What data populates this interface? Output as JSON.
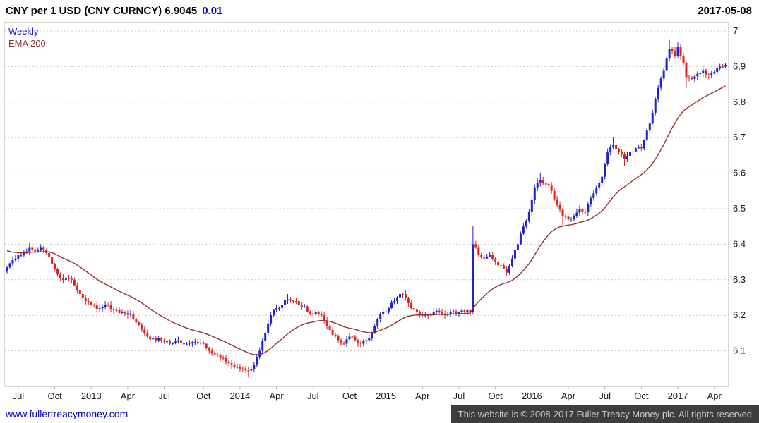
{
  "header": {
    "title": "CNY per 1 USD (CNY CURNCY) 6.9045",
    "change": "0.01",
    "date": "2017-05-08"
  },
  "legend": {
    "series": "Weekly",
    "ema": "EMA 200"
  },
  "footer": {
    "link": "www.fullertreacymoney.com",
    "copyright": "This website is © 2008-2017 Fuller Treacy Money plc. All rights reserved"
  },
  "chart_data": {
    "type": "candlestick",
    "title": "CNY per 1 USD (CNY CURNCY)",
    "frequency": "Weekly",
    "last_price": 6.9045,
    "change": 0.01,
    "date": "2017-05-08",
    "weeks_total": 257,
    "y_axis": {
      "side": "right",
      "min": 6.0,
      "max": 7.02,
      "ticks": [
        "7",
        "6.9",
        "6.8",
        "6.7",
        "6.6",
        "6.5",
        "6.4",
        "6.3",
        "6.2",
        "6.1"
      ]
    },
    "x_axis": {
      "labels": [
        {
          "label": "Jul",
          "week": 4
        },
        {
          "label": "Oct",
          "week": 17
        },
        {
          "label": "2013",
          "week": 30
        },
        {
          "label": "Apr",
          "week": 43
        },
        {
          "label": "Jul",
          "week": 56
        },
        {
          "label": "Oct",
          "week": 70
        },
        {
          "label": "2014",
          "week": 83
        },
        {
          "label": "Apr",
          "week": 96
        },
        {
          "label": "Jul",
          "week": 109
        },
        {
          "label": "Oct",
          "week": 122
        },
        {
          "label": "2015",
          "week": 135
        },
        {
          "label": "Apr",
          "week": 148
        },
        {
          "label": "Jul",
          "week": 161
        },
        {
          "label": "Oct",
          "week": 174
        },
        {
          "label": "2016",
          "week": 187
        },
        {
          "label": "Apr",
          "week": 200
        },
        {
          "label": "Jul",
          "week": 213
        },
        {
          "label": "Oct",
          "week": 226
        },
        {
          "label": "2017",
          "week": 239
        },
        {
          "label": "Apr",
          "week": 252
        }
      ]
    },
    "overlay": {
      "label": "EMA 200",
      "ema_period_weeks": 30,
      "ema_seed": 6.385,
      "color": "#8f3333"
    },
    "colors": {
      "up_candle": "#2222cc",
      "down_candle": "#dd2222",
      "ema_line": "#8f3333",
      "grid": "#c9c9c9",
      "border": "#b4b4b4",
      "axis_text": "#1a1a1a",
      "change_text": "#0000cc",
      "link": "#0000bb",
      "footer_bg": "#3d3d3d",
      "footer_text": "#cccccc"
    },
    "anchors_weekly_close": [
      [
        0,
        6.335
      ],
      [
        2,
        6.355
      ],
      [
        5,
        6.37
      ],
      [
        8,
        6.39,
        6.405,
        null
      ],
      [
        10,
        6.38
      ],
      [
        12,
        6.39,
        6.4,
        null
      ],
      [
        14,
        6.375
      ],
      [
        16,
        6.345
      ],
      [
        18,
        6.315
      ],
      [
        20,
        6.3
      ],
      [
        23,
        6.3
      ],
      [
        26,
        6.26
      ],
      [
        28,
        6.24
      ],
      [
        30,
        6.23
      ],
      [
        33,
        6.22
      ],
      [
        36,
        6.23
      ],
      [
        38,
        6.215
      ],
      [
        41,
        6.21
      ],
      [
        44,
        6.205
      ],
      [
        46,
        6.18
      ],
      [
        48,
        6.16
      ],
      [
        50,
        6.14
      ],
      [
        52,
        6.135
      ],
      [
        55,
        6.13
      ],
      [
        58,
        6.12
      ],
      [
        61,
        6.13
      ],
      [
        64,
        6.12
      ],
      [
        67,
        6.125
      ],
      [
        70,
        6.12
      ],
      [
        72,
        6.1
      ],
      [
        74,
        6.09
      ],
      [
        76,
        6.08
      ],
      [
        78,
        6.07
      ],
      [
        80,
        6.06
      ],
      [
        82,
        6.055
      ],
      [
        84,
        6.05
      ],
      [
        86,
        6.045,
        null,
        6.025
      ],
      [
        88,
        6.06
      ],
      [
        90,
        6.1
      ],
      [
        92,
        6.15
      ],
      [
        94,
        6.2
      ],
      [
        96,
        6.22
      ],
      [
        98,
        6.23
      ],
      [
        100,
        6.245,
        6.26,
        null
      ],
      [
        102,
        6.24
      ],
      [
        104,
        6.23
      ],
      [
        106,
        6.225
      ],
      [
        108,
        6.205
      ],
      [
        110,
        6.21
      ],
      [
        112,
        6.2
      ],
      [
        114,
        6.17
      ],
      [
        116,
        6.145
      ],
      [
        118,
        6.13
      ],
      [
        120,
        6.12
      ],
      [
        122,
        6.14
      ],
      [
        124,
        6.13
      ],
      [
        126,
        6.12,
        null,
        6.11
      ],
      [
        128,
        6.13
      ],
      [
        130,
        6.15
      ],
      [
        132,
        6.19
      ],
      [
        134,
        6.21
      ],
      [
        136,
        6.22
      ],
      [
        138,
        6.24
      ],
      [
        140,
        6.26
      ],
      [
        142,
        6.25,
        6.27,
        null
      ],
      [
        144,
        6.22
      ],
      [
        146,
        6.21
      ],
      [
        148,
        6.2
      ],
      [
        150,
        6.2
      ],
      [
        152,
        6.21
      ],
      [
        154,
        6.21
      ],
      [
        156,
        6.2
      ],
      [
        158,
        6.21
      ],
      [
        160,
        6.205
      ],
      [
        163,
        6.21
      ],
      [
        165,
        6.21
      ],
      [
        166,
        6.4,
        6.45,
        6.21
      ],
      [
        167,
        6.39
      ],
      [
        168,
        6.37
      ],
      [
        170,
        6.36
      ],
      [
        172,
        6.37
      ],
      [
        174,
        6.35
      ],
      [
        176,
        6.34
      ],
      [
        178,
        6.32,
        null,
        6.31
      ],
      [
        180,
        6.36
      ],
      [
        182,
        6.4
      ],
      [
        184,
        6.45
      ],
      [
        186,
        6.49
      ],
      [
        188,
        6.56
      ],
      [
        190,
        6.58,
        6.6,
        null
      ],
      [
        192,
        6.57
      ],
      [
        194,
        6.55
      ],
      [
        196,
        6.51
      ],
      [
        198,
        6.48,
        null,
        6.45
      ],
      [
        200,
        6.47
      ],
      [
        202,
        6.48
      ],
      [
        204,
        6.5
      ],
      [
        206,
        6.49
      ],
      [
        208,
        6.53
      ],
      [
        210,
        6.56
      ],
      [
        212,
        6.59
      ],
      [
        214,
        6.66
      ],
      [
        216,
        6.68,
        6.7,
        null
      ],
      [
        218,
        6.66
      ],
      [
        220,
        6.64,
        null,
        6.62
      ],
      [
        222,
        6.66
      ],
      [
        224,
        6.67
      ],
      [
        226,
        6.67
      ],
      [
        228,
        6.72
      ],
      [
        230,
        6.77
      ],
      [
        232,
        6.84
      ],
      [
        234,
        6.89
      ],
      [
        236,
        6.95,
        6.975,
        null
      ],
      [
        238,
        6.93
      ],
      [
        239,
        6.955,
        6.97,
        null
      ],
      [
        241,
        6.91
      ],
      [
        242,
        6.87,
        null,
        6.84
      ],
      [
        244,
        6.865
      ],
      [
        246,
        6.88
      ],
      [
        248,
        6.89
      ],
      [
        250,
        6.875
      ],
      [
        252,
        6.885
      ],
      [
        254,
        6.9
      ],
      [
        256,
        6.9045
      ]
    ]
  }
}
